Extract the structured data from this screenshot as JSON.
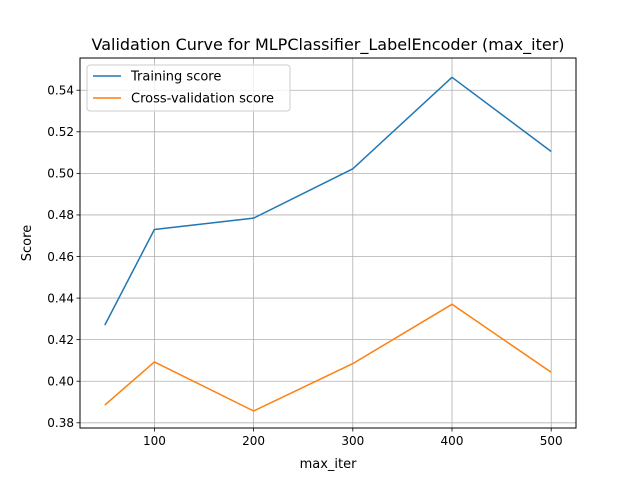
{
  "chart_data": {
    "type": "line",
    "title": "Validation Curve for MLPClassifier_LabelEncoder (max_iter)",
    "xlabel": "max_iter",
    "ylabel": "Score",
    "x": [
      50,
      100,
      200,
      300,
      400,
      500
    ],
    "xlim": [
      25,
      525
    ],
    "ylim": [
      0.3775,
      0.5555
    ],
    "xticks": [
      100,
      200,
      300,
      400,
      500
    ],
    "yticks": [
      0.38,
      0.4,
      0.42,
      0.44,
      0.46,
      0.48,
      0.5,
      0.52,
      0.54
    ],
    "ytick_labels": [
      "0.38",
      "0.40",
      "0.42",
      "0.44",
      "0.46",
      "0.48",
      "0.50",
      "0.52",
      "0.54"
    ],
    "grid": true,
    "legend_position": "upper-left",
    "series": [
      {
        "name": "Training score",
        "color": "#1f77b4",
        "values": [
          0.427,
          0.473,
          0.4785,
          0.5022,
          0.5462,
          0.5105
        ]
      },
      {
        "name": "Cross-validation score",
        "color": "#ff7f0e",
        "values": [
          0.3885,
          0.4093,
          0.3857,
          0.4085,
          0.437,
          0.4043
        ]
      }
    ]
  }
}
